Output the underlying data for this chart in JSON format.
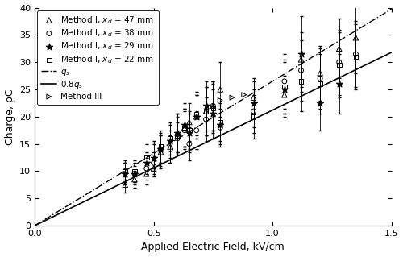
{
  "title": "",
  "xlabel": "Applied Electric Field, kV/cm",
  "ylabel": "Charge, pC",
  "xlim": [
    0,
    1.5
  ],
  "ylim": [
    0,
    40
  ],
  "xticks": [
    0,
    0.5,
    1.0,
    1.5
  ],
  "yticks": [
    0,
    5,
    10,
    15,
    20,
    25,
    30,
    35,
    40
  ],
  "qs_slope": 26.5,
  "solid_slope": 21.2,
  "method_III_data": {
    "x": [
      0.78,
      0.83,
      0.88
    ],
    "y": [
      23.0,
      23.5,
      24.0
    ],
    "marker": ">",
    "color": "black",
    "label": "Method III"
  },
  "series": [
    {
      "label": "Method I, $x_d$ = 47 mm",
      "marker": "^",
      "color": "black",
      "facecolor": "none",
      "data_x": [
        0.38,
        0.42,
        0.47,
        0.5,
        0.53,
        0.57,
        0.6,
        0.63,
        0.65,
        0.68,
        0.72,
        0.75,
        0.78,
        0.92,
        1.05,
        1.12,
        1.2,
        1.28,
        1.35
      ],
      "data_y": [
        7.5,
        8.5,
        9.5,
        10.5,
        13.5,
        14.5,
        17.0,
        18.0,
        19.0,
        20.0,
        21.0,
        22.0,
        25.0,
        23.5,
        24.0,
        30.5,
        28.0,
        32.5,
        34.5
      ],
      "err_y": [
        1.5,
        1.5,
        2.0,
        1.5,
        3.0,
        3.0,
        3.5,
        3.5,
        3.5,
        4.0,
        4.5,
        4.5,
        5.0,
        3.0,
        3.5,
        5.0,
        5.0,
        5.5,
        6.5
      ]
    },
    {
      "label": "Method I, $x_d$ = 38 mm",
      "marker": "o",
      "color": "black",
      "facecolor": "none",
      "data_x": [
        0.38,
        0.42,
        0.47,
        0.5,
        0.53,
        0.57,
        0.6,
        0.63,
        0.65,
        0.68,
        0.72,
        0.75,
        0.78,
        0.92,
        1.05,
        1.12,
        1.2,
        1.28,
        1.35
      ],
      "data_y": [
        10.0,
        9.5,
        10.5,
        11.5,
        14.0,
        14.0,
        16.0,
        17.5,
        15.0,
        17.5,
        19.5,
        22.0,
        18.0,
        21.0,
        26.5,
        28.5,
        27.0,
        30.0,
        31.5
      ],
      "err_y": [
        1.5,
        1.5,
        2.0,
        2.0,
        2.5,
        2.5,
        3.0,
        3.5,
        3.0,
        3.5,
        4.0,
        4.5,
        3.5,
        4.0,
        5.0,
        5.5,
        5.5,
        6.0,
        6.0
      ]
    },
    {
      "label": "Method I, $x_d$ = 29 mm",
      "marker": "*",
      "color": "black",
      "facecolor": "black",
      "data_x": [
        0.38,
        0.42,
        0.47,
        0.5,
        0.53,
        0.57,
        0.6,
        0.63,
        0.65,
        0.68,
        0.72,
        0.75,
        0.78,
        0.92,
        1.05,
        1.12,
        1.2,
        1.28
      ],
      "data_y": [
        9.5,
        9.5,
        11.5,
        12.5,
        14.0,
        15.5,
        17.0,
        18.5,
        17.0,
        20.0,
        22.0,
        20.5,
        18.5,
        22.5,
        25.0,
        31.5,
        22.5,
        26.0
      ],
      "err_y": [
        2.0,
        2.0,
        2.0,
        2.5,
        3.0,
        3.0,
        3.5,
        4.0,
        3.5,
        4.0,
        4.5,
        4.5,
        3.5,
        4.5,
        5.0,
        7.0,
        5.0,
        5.5
      ]
    },
    {
      "label": "Method I, $x_d$ = 22 mm",
      "marker": "s",
      "color": "black",
      "facecolor": "none",
      "data_x": [
        0.38,
        0.42,
        0.47,
        0.5,
        0.53,
        0.57,
        0.6,
        0.63,
        0.65,
        0.68,
        0.72,
        0.75,
        0.78,
        0.92,
        1.05,
        1.12,
        1.2,
        1.28,
        1.35
      ],
      "data_y": [
        10.0,
        10.0,
        12.5,
        13.0,
        14.5,
        16.0,
        16.5,
        18.0,
        17.5,
        20.5,
        21.0,
        21.5,
        19.0,
        20.0,
        25.5,
        26.5,
        26.0,
        29.5,
        31.0
      ],
      "err_y": [
        2.0,
        2.0,
        2.5,
        2.5,
        3.0,
        3.0,
        3.5,
        3.5,
        3.5,
        4.0,
        4.5,
        4.5,
        3.5,
        4.0,
        5.0,
        5.5,
        5.5,
        6.0,
        6.0
      ]
    }
  ],
  "legend_fontsize": 7.5,
  "axis_fontsize": 9,
  "tick_fontsize": 8,
  "background_color": "#ffffff"
}
